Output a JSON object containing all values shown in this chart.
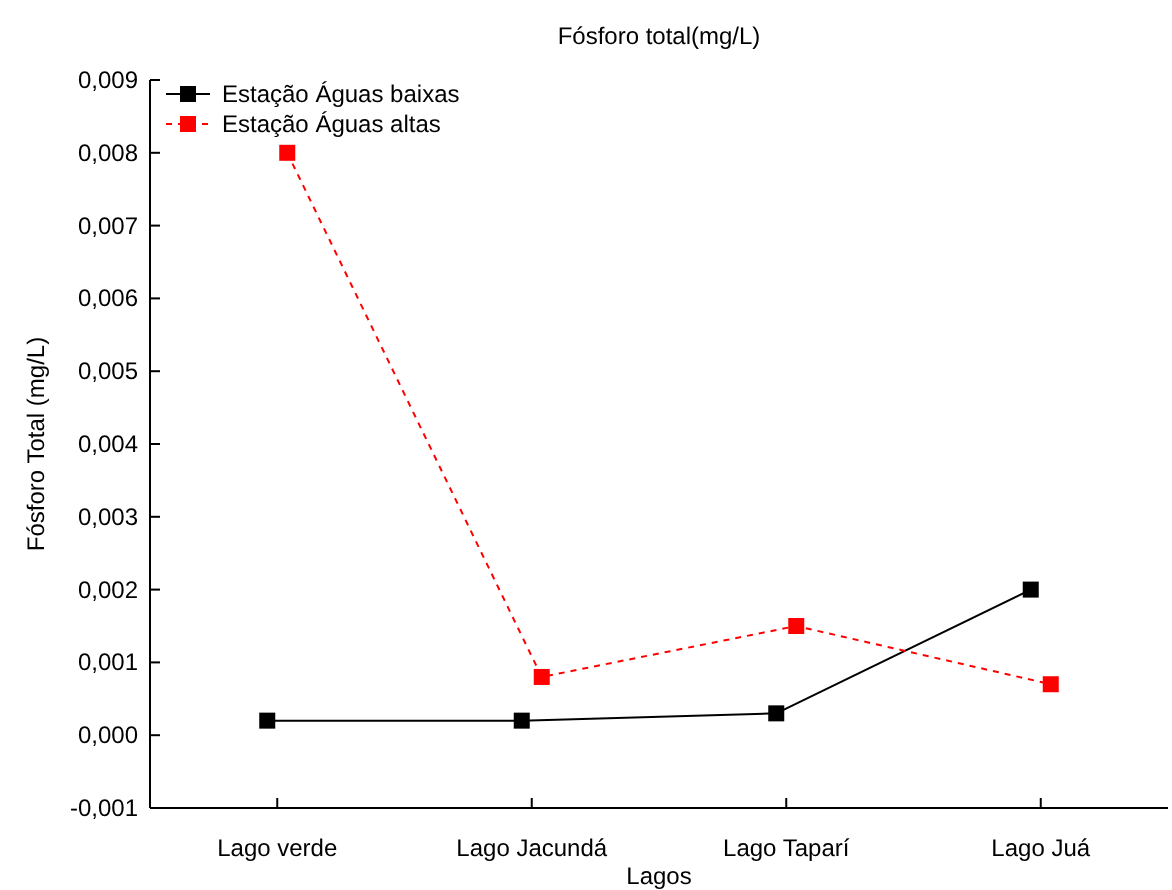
{
  "chart_data": {
    "type": "line",
    "title": "Fósforo total(mg/L)",
    "xlabel": "Lagos",
    "ylabel": "Fósforo Total (mg/L)",
    "categories": [
      "Lago verde",
      "Lago Jacundá",
      "Lago Taparí",
      "Lago Juá"
    ],
    "series": [
      {
        "name": "Estação Águas baixas",
        "color": "#000000",
        "line_style": "solid",
        "values": [
          0.0002,
          0.0002,
          0.0003,
          0.002
        ]
      },
      {
        "name": "Estação Águas altas",
        "color": "#ff0000",
        "line_style": "dashed",
        "values": [
          0.008,
          0.0008,
          0.0015,
          0.0007
        ]
      }
    ],
    "ylim": [
      -0.001,
      0.009
    ],
    "yticks": [
      {
        "value": -0.001,
        "label": "-0,001"
      },
      {
        "value": 0,
        "label": "0,000"
      },
      {
        "value": 0.001,
        "label": "0,001"
      },
      {
        "value": 0.002,
        "label": "0,002"
      },
      {
        "value": 0.003,
        "label": "0,003"
      },
      {
        "value": 0.004,
        "label": "0,004"
      },
      {
        "value": 0.005,
        "label": "0,005"
      },
      {
        "value": 0.006,
        "label": "0,006"
      },
      {
        "value": 0.007,
        "label": "0,007"
      },
      {
        "value": 0.008,
        "label": "0,008"
      },
      {
        "value": 0.009,
        "label": "0,009"
      }
    ],
    "marker": "square",
    "legend": "top left",
    "grid": false
  }
}
